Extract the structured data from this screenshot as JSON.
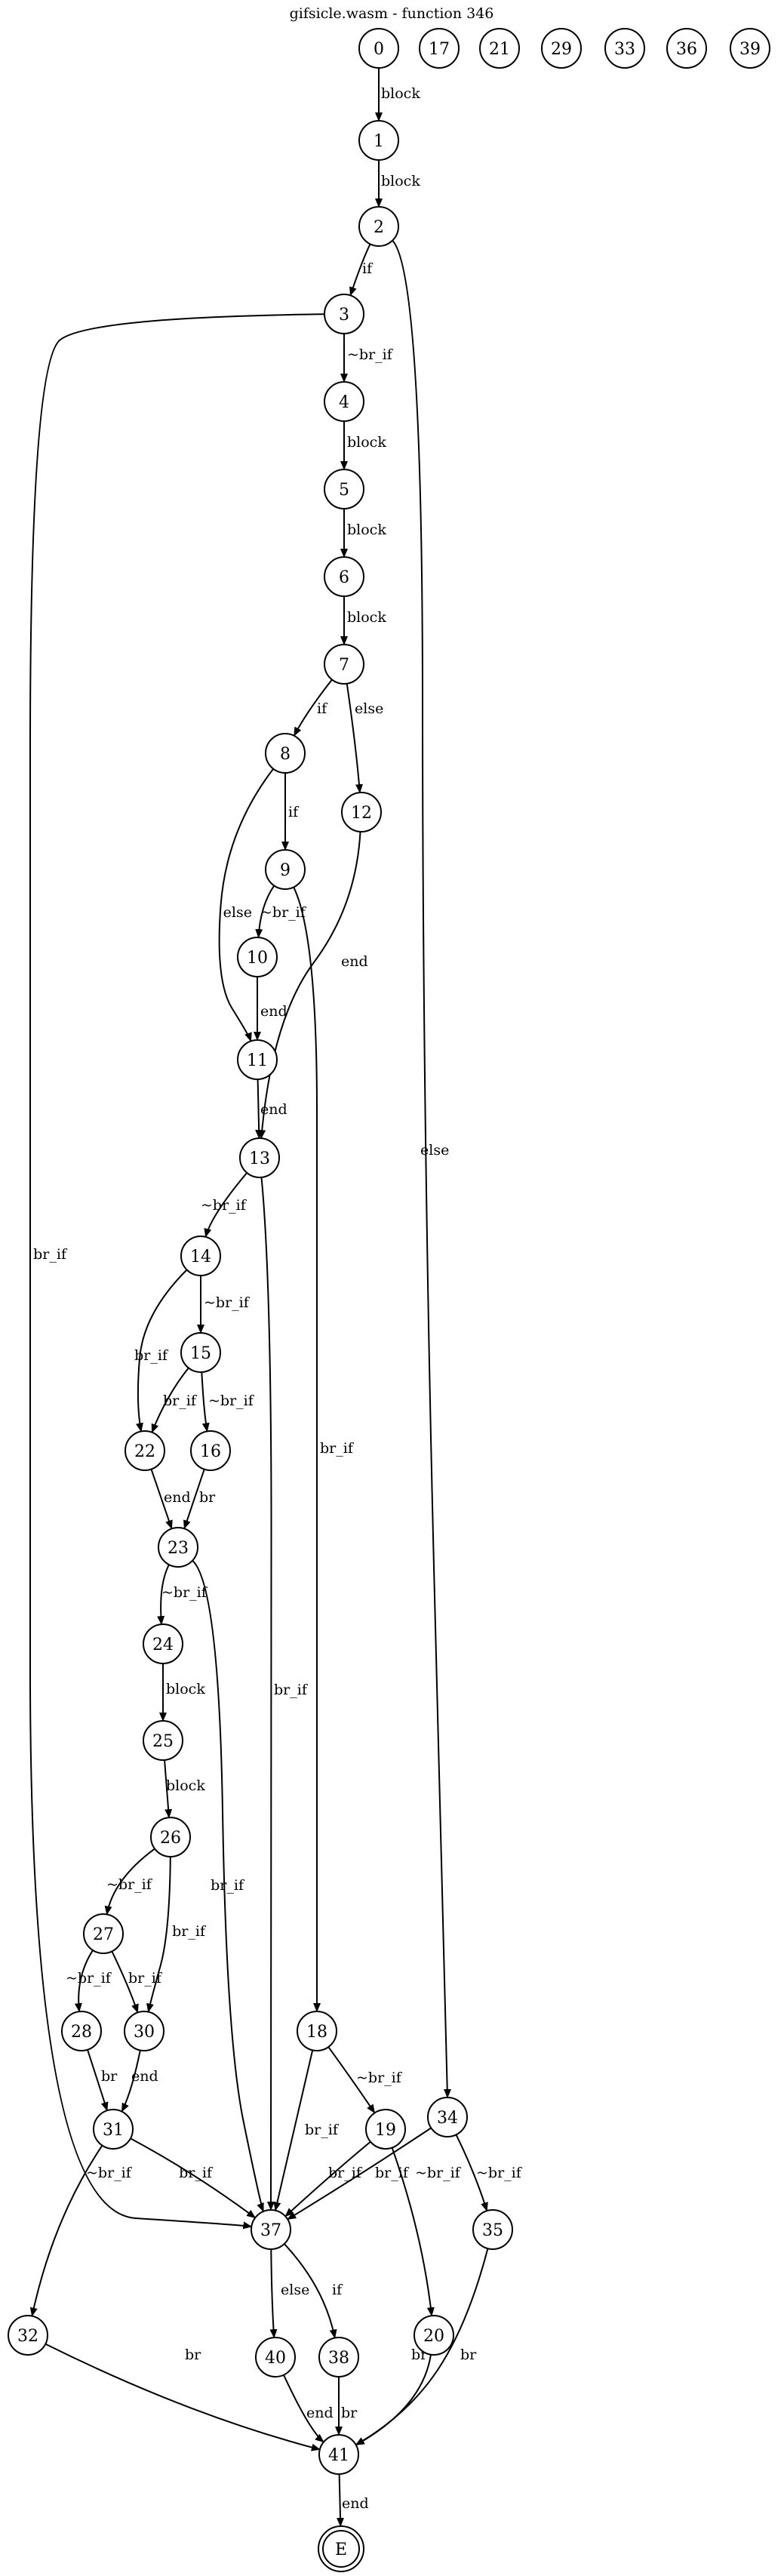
{
  "title": "gifsicle.wasm - function 346",
  "nodes": [
    {
      "id": "0"
    },
    {
      "id": "17"
    },
    {
      "id": "21"
    },
    {
      "id": "29"
    },
    {
      "id": "33"
    },
    {
      "id": "36"
    },
    {
      "id": "39"
    },
    {
      "id": "1"
    },
    {
      "id": "2"
    },
    {
      "id": "3"
    },
    {
      "id": "4"
    },
    {
      "id": "5"
    },
    {
      "id": "6"
    },
    {
      "id": "7"
    },
    {
      "id": "8"
    },
    {
      "id": "12"
    },
    {
      "id": "9"
    },
    {
      "id": "10"
    },
    {
      "id": "11"
    },
    {
      "id": "13"
    },
    {
      "id": "14"
    },
    {
      "id": "15"
    },
    {
      "id": "22"
    },
    {
      "id": "16"
    },
    {
      "id": "23"
    },
    {
      "id": "24"
    },
    {
      "id": "25"
    },
    {
      "id": "26"
    },
    {
      "id": "27"
    },
    {
      "id": "28"
    },
    {
      "id": "30"
    },
    {
      "id": "31"
    },
    {
      "id": "18"
    },
    {
      "id": "19"
    },
    {
      "id": "34"
    },
    {
      "id": "35"
    },
    {
      "id": "37"
    },
    {
      "id": "32"
    },
    {
      "id": "40"
    },
    {
      "id": "38"
    },
    {
      "id": "20"
    },
    {
      "id": "41"
    },
    {
      "id": "E",
      "final": true
    }
  ],
  "edges": [
    {
      "from": "0",
      "to": "1",
      "label": "block"
    },
    {
      "from": "1",
      "to": "2",
      "label": "block"
    },
    {
      "from": "2",
      "to": "3",
      "label": "if"
    },
    {
      "from": "2",
      "to": "34",
      "label": "else"
    },
    {
      "from": "3",
      "to": "4",
      "label": "~br_if"
    },
    {
      "from": "3",
      "to": "37",
      "label": "br_if"
    },
    {
      "from": "4",
      "to": "5",
      "label": "block"
    },
    {
      "from": "5",
      "to": "6",
      "label": "block"
    },
    {
      "from": "6",
      "to": "7",
      "label": "block"
    },
    {
      "from": "7",
      "to": "8",
      "label": "if"
    },
    {
      "from": "7",
      "to": "12",
      "label": "else"
    },
    {
      "from": "8",
      "to": "9",
      "label": "if"
    },
    {
      "from": "8",
      "to": "11",
      "label": "else"
    },
    {
      "from": "9",
      "to": "10",
      "label": "~br_if"
    },
    {
      "from": "9",
      "to": "18",
      "label": "br_if"
    },
    {
      "from": "10",
      "to": "11",
      "label": "end"
    },
    {
      "from": "11",
      "to": "13",
      "label": "end"
    },
    {
      "from": "12",
      "to": "13",
      "label": "end"
    },
    {
      "from": "13",
      "to": "14",
      "label": "~br_if"
    },
    {
      "from": "13",
      "to": "37",
      "label": "br_if"
    },
    {
      "from": "14",
      "to": "15",
      "label": "~br_if"
    },
    {
      "from": "14",
      "to": "22",
      "label": "br_if"
    },
    {
      "from": "15",
      "to": "22",
      "label": "br_if"
    },
    {
      "from": "15",
      "to": "16",
      "label": "~br_if"
    },
    {
      "from": "16",
      "to": "23",
      "label": "br"
    },
    {
      "from": "22",
      "to": "23",
      "label": "end"
    },
    {
      "from": "23",
      "to": "24",
      "label": "~br_if"
    },
    {
      "from": "23",
      "to": "37",
      "label": "br_if"
    },
    {
      "from": "24",
      "to": "25",
      "label": "block"
    },
    {
      "from": "25",
      "to": "26",
      "label": "block"
    },
    {
      "from": "26",
      "to": "27",
      "label": "~br_if"
    },
    {
      "from": "26",
      "to": "30",
      "label": "br_if"
    },
    {
      "from": "27",
      "to": "28",
      "label": "~br_if"
    },
    {
      "from": "27",
      "to": "30",
      "label": "br_if"
    },
    {
      "from": "28",
      "to": "31",
      "label": "br"
    },
    {
      "from": "30",
      "to": "31",
      "label": "end"
    },
    {
      "from": "31",
      "to": "32",
      "label": "~br_if"
    },
    {
      "from": "31",
      "to": "37",
      "label": "br_if"
    },
    {
      "from": "18",
      "to": "19",
      "label": "~br_if"
    },
    {
      "from": "18",
      "to": "37",
      "label": "br_if"
    },
    {
      "from": "19",
      "to": "37",
      "label": "br_if"
    },
    {
      "from": "19",
      "to": "20",
      "label": "~br_if"
    },
    {
      "from": "34",
      "to": "37",
      "label": "br_if"
    },
    {
      "from": "34",
      "to": "35",
      "label": "~br_if"
    },
    {
      "from": "37",
      "to": "40",
      "label": "else"
    },
    {
      "from": "37",
      "to": "38",
      "label": "if"
    },
    {
      "from": "32",
      "to": "41",
      "label": "br"
    },
    {
      "from": "40",
      "to": "41",
      "label": "end"
    },
    {
      "from": "38",
      "to": "41",
      "label": "br"
    },
    {
      "from": "20",
      "to": "41",
      "label": "br"
    },
    {
      "from": "35",
      "to": "41",
      "label": "br"
    },
    {
      "from": "41",
      "to": "E",
      "label": "end"
    }
  ]
}
